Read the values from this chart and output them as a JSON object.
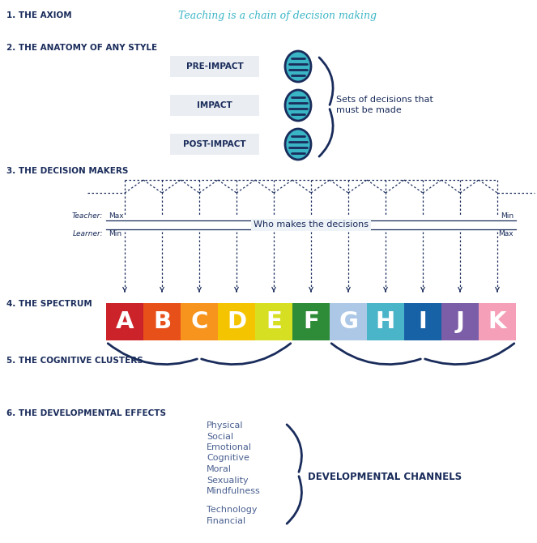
{
  "title_axiom": "1. THE AXIOM",
  "title_anatomy": "2. THE ANATOMY OF ANY STYLE",
  "title_decision_makers": "3. THE DECISION MAKERS",
  "title_spectrum": "4. THE SPECTRUM",
  "title_cognitive": "5. THE COGNITIVE CLUSTERS",
  "title_developmental": "6. THE DEVELOPMENTAL EFFECTS",
  "axiom_italic": "Teaching is a chain of decision making",
  "impact_labels": [
    "PRE-IMPACT",
    "IMPACT",
    "POST-IMPACT"
  ],
  "sets_text_1": "Sets of decisions that",
  "sets_text_2": "must be made",
  "who_decides": "Who makes the decisions",
  "teacher_label": "Teacher:",
  "learner_label": "Learner:",
  "teacher_max": "Max",
  "teacher_min": "Min",
  "learner_min": "Min",
  "learner_max": "Max",
  "spectrum_letters": [
    "A",
    "B",
    "C",
    "D",
    "E",
    "F",
    "G",
    "H",
    "I",
    "J",
    "K"
  ],
  "spectrum_colors": [
    "#cc2229",
    "#e8501a",
    "#f7941d",
    "#f5c400",
    "#d7df23",
    "#2e8b37",
    "#adc8e6",
    "#4ab4c8",
    "#1761a7",
    "#7b5ea7",
    "#f5a0b8"
  ],
  "dev_effects_group1": [
    "Physical",
    "Social",
    "Emotional",
    "Cognitive",
    "Moral",
    "Sexuality",
    "Mindfulness"
  ],
  "dev_effects_group2": [
    "Technology",
    "Financial"
  ],
  "dev_channels": "DEVELOPMENTAL CHANNELS",
  "dark_blue": "#1a2c5b",
  "teal": "#3ab5c6",
  "bg_color": "#ffffff",
  "impact_box_color": "#eaedf2",
  "dev_text_color": "#4a6090",
  "dotted_color": "#1a2c5b"
}
